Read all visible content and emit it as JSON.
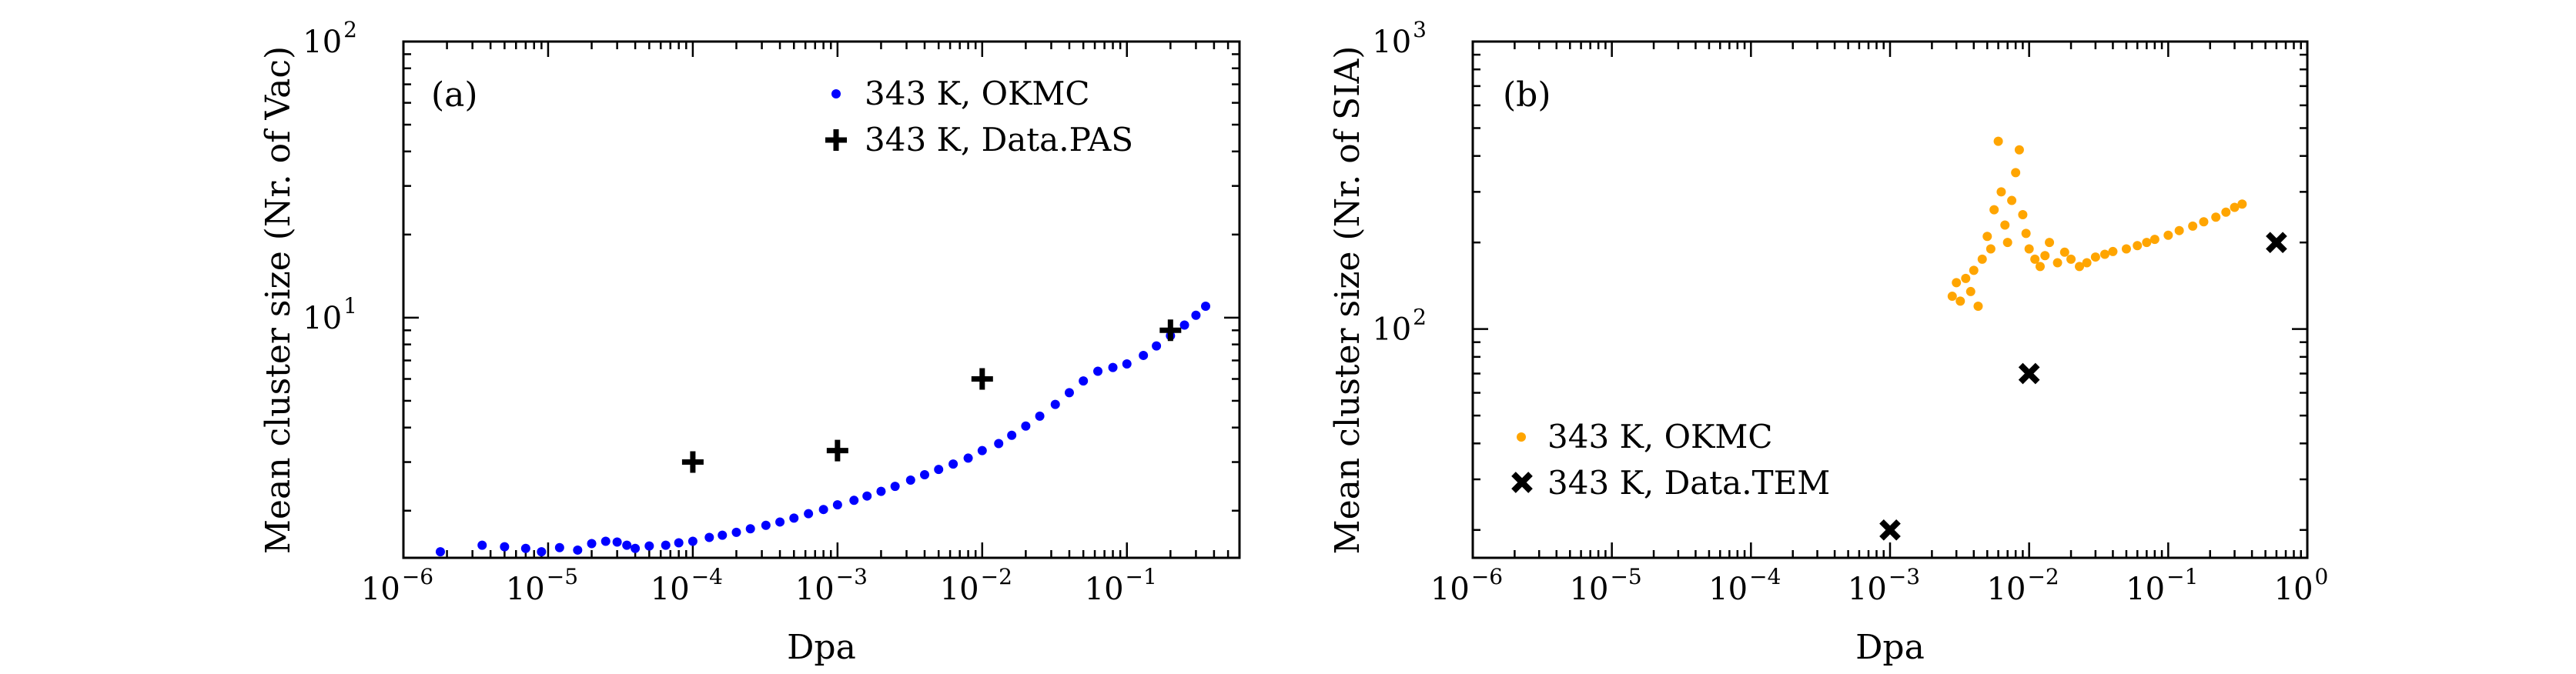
{
  "chart_data": [
    {
      "type": "scatter",
      "panel_label": "(a)",
      "xlabel": "Dpa",
      "ylabel": "Mean cluster size (Nr. of Vac)",
      "xscale": "log",
      "yscale": "log",
      "xlim": [
        1e-06,
        0.6
      ],
      "ylim": [
        1.35,
        100
      ],
      "x_tick_labels": [
        {
          "value": 1e-06,
          "base": "10",
          "exp": "−6"
        },
        {
          "value": 1e-05,
          "base": "10",
          "exp": "−5"
        },
        {
          "value": 0.0001,
          "base": "10",
          "exp": "−4"
        },
        {
          "value": 0.001,
          "base": "10",
          "exp": "−3"
        },
        {
          "value": 0.01,
          "base": "10",
          "exp": "−2"
        },
        {
          "value": 0.1,
          "base": "10",
          "exp": "−1"
        }
      ],
      "y_tick_labels": [
        {
          "value": 10,
          "base": "10",
          "exp": "1"
        },
        {
          "value": 100,
          "base": "10",
          "exp": "2"
        }
      ],
      "legend_position": "top-right",
      "series": [
        {
          "name": "343 K, OKMC",
          "marker": "dot",
          "color": "#0000ff",
          "points": [
            [
              1.8e-06,
              1.42
            ],
            [
              3.5e-06,
              1.5
            ],
            [
              5e-06,
              1.48
            ],
            [
              7e-06,
              1.46
            ],
            [
              9e-06,
              1.42
            ],
            [
              1.2e-05,
              1.47
            ],
            [
              1.6e-05,
              1.44
            ],
            [
              2e-05,
              1.52
            ],
            [
              2.5e-05,
              1.55
            ],
            [
              3e-05,
              1.54
            ],
            [
              3.5e-05,
              1.5
            ],
            [
              4e-05,
              1.46
            ],
            [
              5e-05,
              1.49
            ],
            [
              6.5e-05,
              1.5
            ],
            [
              8e-05,
              1.53
            ],
            [
              0.0001,
              1.55
            ],
            [
              0.00013,
              1.6
            ],
            [
              0.00016,
              1.63
            ],
            [
              0.0002,
              1.67
            ],
            [
              0.00025,
              1.72
            ],
            [
              0.00032,
              1.77
            ],
            [
              0.0004,
              1.82
            ],
            [
              0.0005,
              1.88
            ],
            [
              0.00063,
              1.95
            ],
            [
              0.0008,
              2.02
            ],
            [
              0.001,
              2.1
            ],
            [
              0.0013,
              2.18
            ],
            [
              0.0016,
              2.26
            ],
            [
              0.002,
              2.35
            ],
            [
              0.0025,
              2.45
            ],
            [
              0.0032,
              2.58
            ],
            [
              0.004,
              2.7
            ],
            [
              0.005,
              2.82
            ],
            [
              0.0063,
              2.95
            ],
            [
              0.008,
              3.1
            ],
            [
              0.01,
              3.3
            ],
            [
              0.013,
              3.5
            ],
            [
              0.016,
              3.75
            ],
            [
              0.02,
              4.05
            ],
            [
              0.025,
              4.4
            ],
            [
              0.032,
              4.85
            ],
            [
              0.04,
              5.35
            ],
            [
              0.05,
              5.9
            ],
            [
              0.063,
              6.4
            ],
            [
              0.08,
              6.6
            ],
            [
              0.1,
              6.8
            ],
            [
              0.13,
              7.3
            ],
            [
              0.16,
              7.9
            ],
            [
              0.2,
              8.6
            ],
            [
              0.25,
              9.4
            ],
            [
              0.3,
              10.2
            ],
            [
              0.35,
              11.0
            ]
          ]
        },
        {
          "name": "343 K, Data.PAS",
          "marker": "plus",
          "color": "#000000",
          "points": [
            [
              0.0001,
              3.0
            ],
            [
              0.001,
              3.3
            ],
            [
              0.01,
              6.0
            ],
            [
              0.2,
              9.0
            ]
          ]
        }
      ]
    },
    {
      "type": "scatter",
      "panel_label": "(b)",
      "xlabel": "Dpa",
      "ylabel": "Mean cluster size (Nr. of SIA)",
      "xscale": "log",
      "yscale": "log",
      "xlim": [
        1e-06,
        1.0
      ],
      "ylim": [
        16,
        1000
      ],
      "x_tick_labels": [
        {
          "value": 1e-06,
          "base": "10",
          "exp": "−6"
        },
        {
          "value": 1e-05,
          "base": "10",
          "exp": "−5"
        },
        {
          "value": 0.0001,
          "base": "10",
          "exp": "−4"
        },
        {
          "value": 0.001,
          "base": "10",
          "exp": "−3"
        },
        {
          "value": 0.01,
          "base": "10",
          "exp": "−2"
        },
        {
          "value": 0.1,
          "base": "10",
          "exp": "−1"
        },
        {
          "value": 1,
          "base": "10",
          "exp": "0"
        }
      ],
      "y_tick_labels": [
        {
          "value": 100,
          "base": "10",
          "exp": "2"
        },
        {
          "value": 1000,
          "base": "10",
          "exp": "3"
        }
      ],
      "legend_position": "bottom-left",
      "series": [
        {
          "name": "343 K, OKMC",
          "marker": "dot",
          "color": "#ffa500",
          "points": [
            [
              0.0028,
              130
            ],
            [
              0.003,
              145
            ],
            [
              0.0032,
              125
            ],
            [
              0.0035,
              150
            ],
            [
              0.0038,
              135
            ],
            [
              0.004,
              160
            ],
            [
              0.0043,
              120
            ],
            [
              0.0046,
              175
            ],
            [
              0.005,
              210
            ],
            [
              0.0053,
              190
            ],
            [
              0.0056,
              260
            ],
            [
              0.006,
              450
            ],
            [
              0.0063,
              300
            ],
            [
              0.0067,
              230
            ],
            [
              0.007,
              200
            ],
            [
              0.0075,
              280
            ],
            [
              0.008,
              350
            ],
            [
              0.0085,
              420
            ],
            [
              0.009,
              250
            ],
            [
              0.0095,
              215
            ],
            [
              0.01,
              190
            ],
            [
              0.011,
              175
            ],
            [
              0.012,
              165
            ],
            [
              0.013,
              180
            ],
            [
              0.014,
              200
            ],
            [
              0.016,
              170
            ],
            [
              0.018,
              185
            ],
            [
              0.02,
              175
            ],
            [
              0.023,
              165
            ],
            [
              0.026,
              170
            ],
            [
              0.03,
              178
            ],
            [
              0.035,
              182
            ],
            [
              0.04,
              186
            ],
            [
              0.05,
              190
            ],
            [
              0.06,
              195
            ],
            [
              0.07,
              200
            ],
            [
              0.08,
              205
            ],
            [
              0.1,
              212
            ],
            [
              0.12,
              220
            ],
            [
              0.15,
              228
            ],
            [
              0.18,
              236
            ],
            [
              0.22,
              245
            ],
            [
              0.26,
              255
            ],
            [
              0.3,
              265
            ],
            [
              0.34,
              272
            ]
          ]
        },
        {
          "name": "343 K, Data.TEM",
          "marker": "x",
          "color": "#000000",
          "points": [
            [
              0.001,
              20
            ],
            [
              0.01,
              70
            ],
            [
              0.6,
              200
            ]
          ]
        }
      ]
    }
  ]
}
